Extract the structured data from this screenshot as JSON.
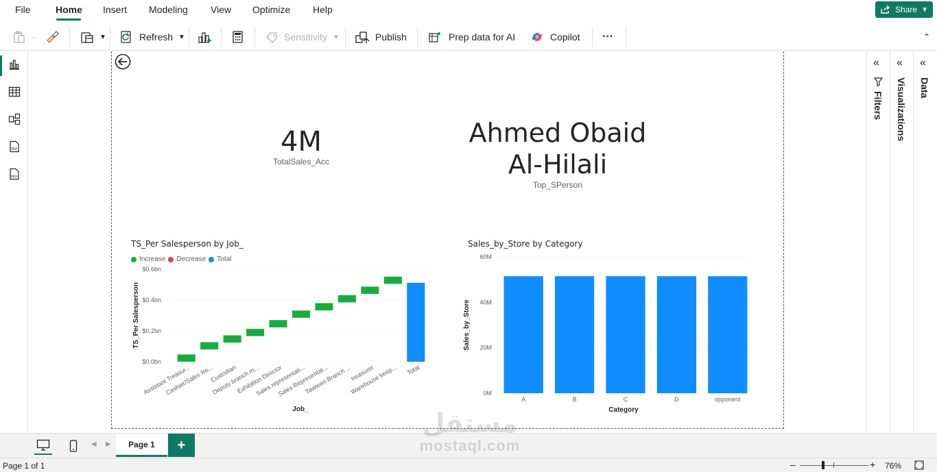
{
  "menu": {
    "items": [
      "File",
      "Home",
      "Insert",
      "Modeling",
      "View",
      "Optimize",
      "Help"
    ],
    "share_label": "Share"
  },
  "ribbon": {
    "refresh_label": "Refresh",
    "sensitivity_label": "Sensitivity",
    "publish_label": "Publish",
    "prep_label": "Prep data for AI",
    "copilot_label": "Copilot",
    "more_label": "···"
  },
  "panes": {
    "filters_label": "Filters",
    "visualizations_label": "Visualizations",
    "data_label": "Data"
  },
  "cards": {
    "sales_value": "4M",
    "sales_label": "TotalSales_Acc",
    "person_line1": "Ahmed Obaid",
    "person_line2": "Al-Hilali",
    "person_label": "Top_SPerson"
  },
  "pagebar": {
    "page_tab": "Page 1",
    "add_label": "+"
  },
  "status": {
    "page_info": "Page 1 of 1",
    "zoom": "76%"
  },
  "watermark": {
    "arabic": "مستقل",
    "latin": "mostaql.com"
  },
  "colors": {
    "accent": "#117865",
    "increase": "#1aab40",
    "decrease": "#d64554",
    "total": "#118dff"
  },
  "chart_data": [
    {
      "type": "waterfall",
      "title": "TS_Per Salesperson by Job_",
      "xlabel": "Job_",
      "ylabel": "TS_Per Salesperson",
      "legend": [
        {
          "name": "Increase",
          "color": "#1aab40"
        },
        {
          "name": "Decrease",
          "color": "#d64554"
        },
        {
          "name": "Total",
          "color": "#118dff"
        }
      ],
      "legend_position": "top-left",
      "categories": [
        "Assistant Treasur...",
        "Cashier/Sales Re...",
        "Custodian",
        "Deputy branch m...",
        "Exhibition Director",
        "Sales representati...",
        "Sales Representat...",
        "Tawteen Branch ...",
        "treasurer",
        "Warehouse keep...",
        "Total"
      ],
      "steps": [
        {
          "start": 0.0,
          "end": 0.047
        },
        {
          "start": 0.08,
          "end": 0.127
        },
        {
          "start": 0.124,
          "end": 0.171
        },
        {
          "start": 0.166,
          "end": 0.213
        },
        {
          "start": 0.223,
          "end": 0.27
        },
        {
          "start": 0.285,
          "end": 0.332
        },
        {
          "start": 0.333,
          "end": 0.38
        },
        {
          "start": 0.385,
          "end": 0.432
        },
        {
          "start": 0.44,
          "end": 0.487
        },
        {
          "start": 0.505,
          "end": 0.552
        }
      ],
      "total": 0.512,
      "y_ticks": [
        "$0.0bn",
        "$0.2bn",
        "$0.4bn",
        "$0.6bn"
      ],
      "ylim": [
        0,
        0.6
      ],
      "grid": true
    },
    {
      "type": "bar",
      "title": "Sales_by_Store by Category",
      "xlabel": "Category",
      "ylabel": "Sales_by_Store",
      "categories": [
        "A",
        "B",
        "C",
        "D",
        "opponent"
      ],
      "values": [
        51.5,
        51.5,
        51.5,
        51.5,
        51.5
      ],
      "y_ticks": [
        "0M",
        "20M",
        "40M",
        "60M"
      ],
      "ylim": [
        0,
        60
      ],
      "color": "#118dff",
      "grid": true
    }
  ]
}
